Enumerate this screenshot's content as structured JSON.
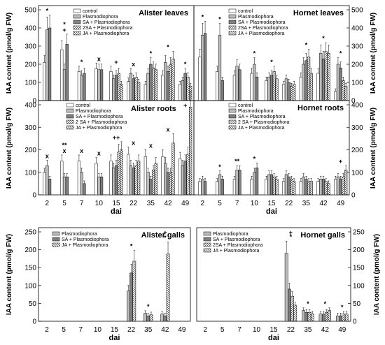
{
  "ylabel": "IAA content (pmol/g FW)",
  "xlabel": "dai",
  "colors": {
    "control": "#ffffff",
    "plasmo": "#bdbdbd",
    "sa": "#7f7f7f",
    "twoSa": "#e6e6e6",
    "ja": "#ffffff",
    "stroke": "#000000"
  },
  "chart_data": [
    {
      "type": "bar",
      "title": "Alister leaves",
      "ylim": [
        0,
        500
      ],
      "yticks": [
        0,
        100,
        200,
        300,
        400,
        500
      ],
      "legend": [
        "control",
        "Plasmodiophora",
        "SA + Plasmodiophora",
        "2SA + Plasmodiophora",
        "JA + Plasmodiophora"
      ],
      "legend_position": "top-center",
      "categories": [
        "2",
        "5",
        "7",
        "10",
        "15",
        "22",
        "35",
        "42",
        "49"
      ],
      "series": [
        {
          "name": "control",
          "values": [
            210,
            280,
            160,
            175,
            160,
            105,
            90,
            140,
            90
          ]
        },
        {
          "name": "Plasmodiophora",
          "values": [
            390,
            170,
            140,
            170,
            120,
            150,
            150,
            210,
            110
          ]
        },
        {
          "name": "SA + Plasmodiophora",
          "values": [
            400,
            310,
            150,
            170,
            140,
            120,
            200,
            160,
            150
          ]
        },
        {
          "name": "2SA + Plasmodiophora",
          "values": [
            0,
            0,
            0,
            0,
            150,
            130,
            180,
            200,
            130
          ]
        },
        {
          "name": "JA + Plasmodiophora",
          "values": [
            0,
            0,
            0,
            0,
            90,
            100,
            170,
            230,
            80
          ]
        }
      ],
      "marks": [
        {
          "cat": "2",
          "text": "*"
        },
        {
          "cat": "5",
          "text": "+"
        },
        {
          "cat": "5",
          "text": "*"
        },
        {
          "cat": "7",
          "text": "*"
        },
        {
          "cat": "10",
          "text": "x"
        },
        {
          "cat": "15",
          "text": "+"
        },
        {
          "cat": "22",
          "text": "x"
        },
        {
          "cat": "35",
          "text": "*"
        },
        {
          "cat": "42",
          "text": "*"
        },
        {
          "cat": "49",
          "text": "*"
        }
      ]
    },
    {
      "type": "bar",
      "title": "Hornet leaves",
      "ylim": [
        0,
        500
      ],
      "yticks": [
        0,
        100,
        200,
        300,
        400,
        500
      ],
      "legend": [
        "control",
        "Plasmodiophora",
        "SA + Plasmodiophora",
        "2SA + Plasmodiophora",
        "JA + Plasmodiophora"
      ],
      "legend_position": "top-center",
      "categories": [
        "2",
        "5",
        "7",
        "10",
        "15",
        "22",
        "35",
        "42",
        "49"
      ],
      "series": [
        {
          "name": "control",
          "values": [
            240,
            160,
            140,
            150,
            110,
            90,
            130,
            150,
            50
          ]
        },
        {
          "name": "Plasmodiophora",
          "values": [
            360,
            360,
            190,
            200,
            130,
            120,
            200,
            260,
            200
          ]
        },
        {
          "name": "SA + Plasmodiophora",
          "values": [
            370,
            110,
            170,
            130,
            140,
            100,
            220,
            230,
            180
          ]
        },
        {
          "name": "2SA + Plasmodiophora",
          "values": [
            0,
            0,
            0,
            0,
            160,
            80,
            240,
            270,
            110
          ]
        },
        {
          "name": "JA + Plasmodiophora",
          "values": [
            0,
            0,
            0,
            0,
            120,
            90,
            150,
            260,
            80
          ]
        }
      ],
      "marks": [
        {
          "cat": "2",
          "text": "*"
        },
        {
          "cat": "5",
          "text": "*"
        },
        {
          "cat": "10",
          "text": "*"
        },
        {
          "cat": "15",
          "text": "*"
        },
        {
          "cat": "35",
          "text": "*"
        },
        {
          "cat": "42",
          "text": "*"
        },
        {
          "cat": "49",
          "text": "*"
        }
      ]
    },
    {
      "type": "bar",
      "title": "Alister roots",
      "ylim": [
        0,
        400
      ],
      "yticks": [
        0,
        100,
        200,
        300,
        400
      ],
      "legend": [
        "control",
        "Plasmodiophora",
        "SA + Plasmodiophora",
        "2 SA + Plasmodiophora",
        "JA + Plasmodiophora"
      ],
      "legend_position": "top-left",
      "categories": [
        "2",
        "5",
        "7",
        "10",
        "15",
        "22",
        "35",
        "42",
        "49"
      ],
      "series": [
        {
          "name": "control",
          "values": [
            100,
            150,
            150,
            140,
            150,
            180,
            170,
            170,
            160
          ]
        },
        {
          "name": "Plasmodiophora",
          "values": [
            130,
            80,
            100,
            80,
            120,
            130,
            100,
            140,
            130
          ]
        },
        {
          "name": "SA + Plasmodiophora",
          "values": [
            70,
            80,
            50,
            80,
            130,
            120,
            70,
            100,
            150
          ]
        },
        {
          "name": "2 SA + Plasmodiophora",
          "values": [
            0,
            0,
            0,
            0,
            190,
            130,
            110,
            100,
            180
          ]
        },
        {
          "name": "JA + Plasmodiophora",
          "values": [
            0,
            0,
            0,
            0,
            200,
            150,
            140,
            230,
            390
          ]
        }
      ],
      "marks": [
        {
          "cat": "2",
          "text": "x"
        },
        {
          "cat": "5",
          "text": "x"
        },
        {
          "cat": "5",
          "text": "**"
        },
        {
          "cat": "7",
          "text": "x"
        },
        {
          "cat": "10",
          "text": "x"
        },
        {
          "cat": "15",
          "text": "++"
        },
        {
          "cat": "22",
          "text": "x"
        },
        {
          "cat": "35",
          "text": "x"
        },
        {
          "cat": "42",
          "text": "x"
        },
        {
          "cat": "49",
          "text": "+"
        }
      ]
    },
    {
      "type": "bar",
      "title": "Hornet  roots",
      "ylim": [
        0,
        400
      ],
      "yticks": [
        0,
        100,
        200,
        300,
        400
      ],
      "legend": [
        "control",
        "Plasmodiophora",
        "SA + Plasmodiophora",
        "2 SA + Plasmodiophora",
        "JA + Plasmodiophora"
      ],
      "legend_position": "top-center",
      "categories": [
        "2",
        "5",
        "7",
        "10",
        "15",
        "22",
        "35",
        "42",
        "49"
      ],
      "series": [
        {
          "name": "control",
          "values": [
            60,
            60,
            70,
            70,
            70,
            60,
            60,
            60,
            70
          ]
        },
        {
          "name": "Plasmodiophora",
          "values": [
            70,
            90,
            110,
            100,
            90,
            90,
            80,
            70,
            80
          ]
        },
        {
          "name": "SA + Plasmodiophora",
          "values": [
            60,
            70,
            110,
            120,
            90,
            80,
            70,
            70,
            70
          ]
        },
        {
          "name": "2 SA + Plasmodiophora",
          "values": [
            0,
            0,
            0,
            0,
            80,
            70,
            60,
            60,
            80
          ]
        },
        {
          "name": "JA + Plasmodiophora",
          "values": [
            0,
            0,
            0,
            0,
            70,
            60,
            60,
            50,
            110
          ]
        }
      ],
      "marks": [
        {
          "cat": "5",
          "text": "*"
        },
        {
          "cat": "7",
          "text": "**"
        },
        {
          "cat": "10",
          "text": "*"
        },
        {
          "cat": "49",
          "text": "+"
        }
      ]
    },
    {
      "type": "bar",
      "title": "Alister  galls",
      "ylim": [
        0,
        250
      ],
      "yticks": [
        0,
        50,
        100,
        150,
        200,
        250
      ],
      "legend": [
        "Plasmodiophora",
        "SA + Plasmodiophora",
        "JA + Plasmodiophora"
      ],
      "legend_position": "top-left",
      "categories": [
        "2",
        "5",
        "7",
        "10",
        "15",
        "22",
        "35",
        "42",
        "49"
      ],
      "series": [
        {
          "name": "Plasmodiophora",
          "values": [
            0,
            0,
            0,
            0,
            0,
            85,
            22,
            20,
            0
          ]
        },
        {
          "name": "SA + Plasmodiophora",
          "values": [
            0,
            0,
            0,
            0,
            0,
            135,
            15,
            15,
            0
          ]
        },
        {
          "name": "JA + Plasmodiophora",
          "values": [
            0,
            0,
            0,
            0,
            0,
            168,
            18,
            188,
            0
          ]
        }
      ],
      "marks": [
        {
          "cat": "22",
          "text": "*"
        },
        {
          "cat": "35",
          "text": "*"
        },
        {
          "cat": "42",
          "text": "*"
        },
        {
          "cat": "42",
          "text": "+"
        }
      ]
    },
    {
      "type": "bar",
      "title": "Hornet  galls",
      "ylim": [
        0,
        250
      ],
      "yticks": [
        0,
        50,
        100,
        150,
        200,
        250
      ],
      "legend": [
        "Plasmodiophora",
        "SA + Plasmodiophora",
        "2SA + Plasmodiophora",
        "JA + Plasmodiophora"
      ],
      "legend_position": "top-left",
      "categories": [
        "2",
        "5",
        "7",
        "10",
        "15",
        "22",
        "35",
        "42",
        "49"
      ],
      "series": [
        {
          "name": "Plasmodiophora",
          "values": [
            0,
            0,
            0,
            0,
            0,
            190,
            30,
            20,
            15
          ]
        },
        {
          "name": "SA + Plasmodiophora",
          "values": [
            0,
            0,
            0,
            0,
            0,
            90,
            25,
            20,
            15
          ]
        },
        {
          "name": "2SA + Plasmodiophora",
          "values": [
            0,
            0,
            0,
            0,
            0,
            70,
            25,
            25,
            20
          ]
        },
        {
          "name": "JA + Plasmodiophora",
          "values": [
            0,
            0,
            0,
            0,
            0,
            45,
            20,
            30,
            20
          ]
        }
      ],
      "marks": [
        {
          "cat": "22",
          "text": "*"
        },
        {
          "cat": "22",
          "text": "+"
        },
        {
          "cat": "35",
          "text": "*"
        },
        {
          "cat": "42",
          "text": "*"
        },
        {
          "cat": "49",
          "text": "*"
        }
      ]
    }
  ]
}
